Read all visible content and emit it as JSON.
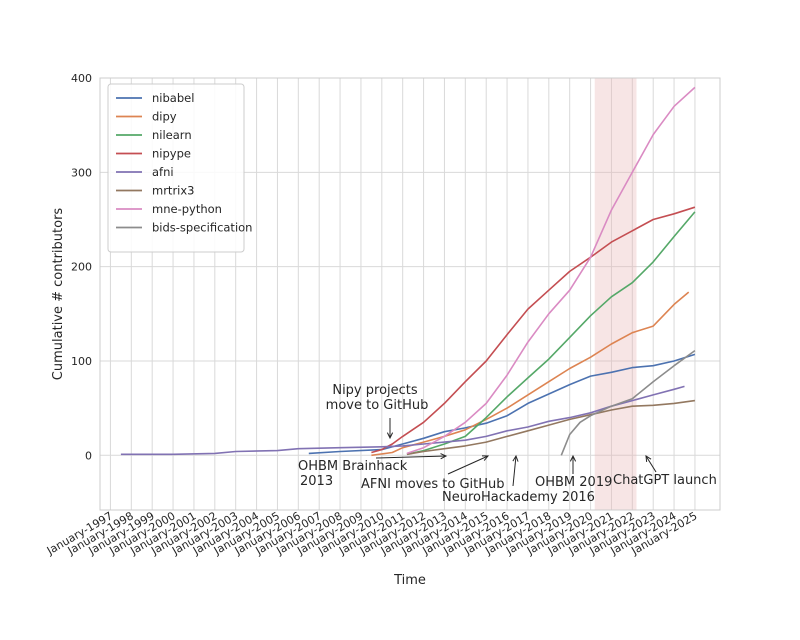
{
  "chart_data": {
    "type": "line",
    "xlabel": "Time",
    "ylabel": "Cumulative # contributors",
    "xlim": [
      1996.5,
      2026.2
    ],
    "ylim": [
      -58,
      400
    ],
    "grid": true,
    "legend_position": "upper-left",
    "x_ticks": [
      "January-1997",
      "January-1998",
      "January-1999",
      "January-2000",
      "January-2001",
      "January-2002",
      "January-2003",
      "January-2004",
      "January-2005",
      "January-2006",
      "January-2007",
      "January-2008",
      "January-2009",
      "January-2010",
      "January-2011",
      "January-2012",
      "January-2013",
      "January-2014",
      "January-2015",
      "January-2016",
      "January-2017",
      "January-2018",
      "January-2019",
      "January-2020",
      "January-2021",
      "January-2022",
      "January-2023",
      "January-2024",
      "January-2025"
    ],
    "y_ticks": [
      "0",
      "100",
      "200",
      "300",
      "400"
    ],
    "highlight_span": {
      "from": 2020.2,
      "to": 2022.2,
      "color": "#e8b4b4"
    },
    "series": [
      {
        "name": "nibabel",
        "color": "#4c72b0",
        "x": [
          2006.5,
          2008,
          2010,
          2011,
          2012,
          2013,
          2014,
          2015,
          2016,
          2017,
          2018,
          2019,
          2020,
          2021,
          2022,
          2023,
          2024,
          2025
        ],
        "y": [
          2,
          4,
          6,
          12,
          18,
          25,
          29,
          34,
          42,
          55,
          65,
          75,
          84,
          88,
          93,
          95,
          100,
          107
        ]
      },
      {
        "name": "dipy",
        "color": "#dd8452",
        "x": [
          2009.5,
          2010.5,
          2011,
          2012,
          2013,
          2014,
          2015,
          2016,
          2017,
          2018,
          2019,
          2020,
          2021,
          2022,
          2023,
          2024,
          2024.7
        ],
        "y": [
          0,
          3,
          8,
          14,
          20,
          27,
          38,
          50,
          64,
          78,
          92,
          104,
          118,
          130,
          137,
          160,
          173
        ]
      },
      {
        "name": "nilearn",
        "color": "#55a868",
        "x": [
          2011.2,
          2012,
          2013,
          2014,
          2015,
          2016,
          2017,
          2018,
          2019,
          2020,
          2021,
          2022,
          2023,
          2024,
          2025
        ],
        "y": [
          1,
          5,
          12,
          20,
          40,
          62,
          82,
          102,
          125,
          148,
          168,
          183,
          205,
          232,
          258
        ]
      },
      {
        "name": "nipype",
        "color": "#c44e52",
        "x": [
          2009.5,
          2010,
          2010.5,
          2011,
          2012,
          2013,
          2014,
          2015,
          2016,
          2017,
          2018,
          2019,
          2020,
          2021,
          2022,
          2023,
          2024,
          2025
        ],
        "y": [
          3,
          6,
          12,
          20,
          35,
          55,
          78,
          100,
          128,
          155,
          175,
          195,
          210,
          226,
          238,
          250,
          256,
          263
        ]
      },
      {
        "name": "afni",
        "color": "#8172b3",
        "x": [
          1997.5,
          2000,
          2002,
          2003,
          2005,
          2006,
          2008,
          2010,
          2011,
          2012,
          2013,
          2014,
          2015,
          2016,
          2017,
          2018,
          2019,
          2020,
          2021,
          2022,
          2023,
          2024,
          2024.5
        ],
        "y": [
          1,
          1,
          2,
          4,
          5,
          7,
          8,
          9,
          10,
          12,
          14,
          16,
          20,
          26,
          30,
          36,
          40,
          45,
          52,
          58,
          64,
          70,
          73
        ]
      },
      {
        "name": "mrtrix3",
        "color": "#937860",
        "x": [
          2011.2,
          2012,
          2013,
          2014,
          2015,
          2016,
          2017,
          2018,
          2019,
          2020,
          2021,
          2022,
          2023,
          2024,
          2025
        ],
        "y": [
          1,
          4,
          7,
          10,
          14,
          20,
          26,
          32,
          38,
          43,
          48,
          52,
          53,
          55,
          58
        ]
      },
      {
        "name": "mne-python",
        "color": "#da8bc3",
        "x": [
          2011.2,
          2012,
          2013,
          2014,
          2015,
          2016,
          2017,
          2018,
          2019,
          2020,
          2021,
          2022,
          2023,
          2024,
          2025
        ],
        "y": [
          2,
          8,
          20,
          35,
          55,
          85,
          120,
          150,
          175,
          210,
          260,
          300,
          340,
          370,
          390
        ]
      },
      {
        "name": "bids-specification",
        "color": "#8c8c8c",
        "x": [
          2018.6,
          2019,
          2019.5,
          2020,
          2021,
          2022,
          2023,
          2024,
          2025
        ],
        "y": [
          0,
          22,
          35,
          42,
          52,
          60,
          78,
          95,
          111
        ]
      }
    ],
    "annotations": [
      {
        "id": "nipy",
        "lines": [
          "Nipy projects",
          "move to GitHub"
        ],
        "point": [
          2010.6,
          0
        ]
      },
      {
        "id": "ohbm2013",
        "lines": [
          "OHBM Brainhack",
          "2013"
        ],
        "point": [
          2013.0,
          0
        ]
      },
      {
        "id": "afni",
        "lines": [
          "AFNI moves to GitHub"
        ],
        "point": [
          2014.7,
          0
        ]
      },
      {
        "id": "nh2016",
        "lines": [
          "NeuroHackademy 2016"
        ],
        "point": [
          2016.0,
          0
        ]
      },
      {
        "id": "ohbm2019",
        "lines": [
          "OHBM 2019"
        ],
        "point": [
          2019.2,
          0
        ]
      },
      {
        "id": "chatgpt",
        "lines": [
          "ChatGPT launch"
        ],
        "point": [
          2022.9,
          0
        ]
      }
    ]
  }
}
